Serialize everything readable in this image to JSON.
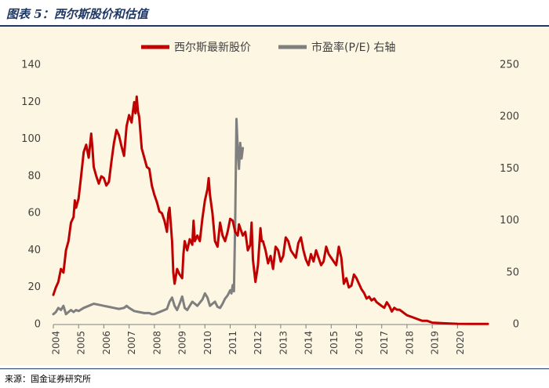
{
  "figure": {
    "title": "图表 5：西尔斯股价和估值",
    "source": "来源：国金证券研究所"
  },
  "chart_data": {
    "type": "line",
    "title": "",
    "legend_position": "top",
    "grid": false,
    "x_ticks": [
      "2004",
      "2005",
      "2006",
      "2007",
      "2008",
      "2009",
      "2010",
      "2011",
      "2012",
      "2013",
      "2014",
      "2015",
      "2016",
      "2017",
      "2018",
      "2019",
      "2020"
    ],
    "xlim": [
      2004.0,
      2021.2
    ],
    "y_left": {
      "lim": [
        0,
        140
      ],
      "ticks": [
        0,
        20,
        40,
        60,
        80,
        100,
        120,
        140
      ]
    },
    "y_right": {
      "lim": [
        0,
        250
      ],
      "ticks": [
        0,
        50,
        100,
        150,
        200,
        250
      ]
    },
    "series": [
      {
        "name": "西尔斯最新股价",
        "axis": "left",
        "color": "#c00000",
        "points": [
          [
            2004.0,
            16
          ],
          [
            2004.1,
            20
          ],
          [
            2004.2,
            23
          ],
          [
            2004.3,
            30
          ],
          [
            2004.4,
            28
          ],
          [
            2004.5,
            40
          ],
          [
            2004.6,
            45
          ],
          [
            2004.7,
            55
          ],
          [
            2004.8,
            58
          ],
          [
            2004.85,
            67
          ],
          [
            2004.9,
            63
          ],
          [
            2005.0,
            68
          ],
          [
            2005.1,
            80
          ],
          [
            2005.2,
            93
          ],
          [
            2005.3,
            97
          ],
          [
            2005.4,
            90
          ],
          [
            2005.5,
            103
          ],
          [
            2005.55,
            95
          ],
          [
            2005.6,
            85
          ],
          [
            2005.7,
            80
          ],
          [
            2005.8,
            76
          ],
          [
            2005.9,
            80
          ],
          [
            2006.0,
            79
          ],
          [
            2006.1,
            75
          ],
          [
            2006.2,
            77
          ],
          [
            2006.3,
            88
          ],
          [
            2006.4,
            98
          ],
          [
            2006.5,
            105
          ],
          [
            2006.6,
            102
          ],
          [
            2006.7,
            96
          ],
          [
            2006.8,
            91
          ],
          [
            2006.9,
            107
          ],
          [
            2007.0,
            113
          ],
          [
            2007.1,
            109
          ],
          [
            2007.15,
            115
          ],
          [
            2007.2,
            120
          ],
          [
            2007.25,
            114
          ],
          [
            2007.3,
            123
          ],
          [
            2007.35,
            115
          ],
          [
            2007.4,
            112
          ],
          [
            2007.5,
            95
          ],
          [
            2007.6,
            90
          ],
          [
            2007.7,
            85
          ],
          [
            2007.8,
            84
          ],
          [
            2007.9,
            75
          ],
          [
            2008.0,
            70
          ],
          [
            2008.1,
            66
          ],
          [
            2008.2,
            61
          ],
          [
            2008.3,
            60
          ],
          [
            2008.4,
            56
          ],
          [
            2008.5,
            50
          ],
          [
            2008.55,
            60
          ],
          [
            2008.6,
            63
          ],
          [
            2008.7,
            45
          ],
          [
            2008.75,
            28
          ],
          [
            2008.8,
            22
          ],
          [
            2008.9,
            30
          ],
          [
            2009.0,
            27
          ],
          [
            2009.1,
            25
          ],
          [
            2009.15,
            38
          ],
          [
            2009.2,
            45
          ],
          [
            2009.3,
            40
          ],
          [
            2009.4,
            46
          ],
          [
            2009.5,
            43
          ],
          [
            2009.55,
            56
          ],
          [
            2009.6,
            45
          ],
          [
            2009.7,
            48
          ],
          [
            2009.8,
            45
          ],
          [
            2009.9,
            57
          ],
          [
            2010.0,
            67
          ],
          [
            2010.1,
            73
          ],
          [
            2010.15,
            79
          ],
          [
            2010.2,
            70
          ],
          [
            2010.3,
            60
          ],
          [
            2010.4,
            45
          ],
          [
            2010.5,
            42
          ],
          [
            2010.6,
            55
          ],
          [
            2010.7,
            48
          ],
          [
            2010.8,
            45
          ],
          [
            2010.9,
            50
          ],
          [
            2011.0,
            57
          ],
          [
            2011.1,
            56
          ],
          [
            2011.2,
            50
          ],
          [
            2011.3,
            48
          ],
          [
            2011.35,
            54
          ],
          [
            2011.4,
            52
          ],
          [
            2011.5,
            48
          ],
          [
            2011.6,
            50
          ],
          [
            2011.7,
            40
          ],
          [
            2011.8,
            43
          ],
          [
            2011.85,
            55
          ],
          [
            2011.9,
            35
          ],
          [
            2012.0,
            23
          ],
          [
            2012.1,
            32
          ],
          [
            2012.2,
            52
          ],
          [
            2012.25,
            45
          ],
          [
            2012.3,
            45
          ],
          [
            2012.4,
            40
          ],
          [
            2012.5,
            33
          ],
          [
            2012.6,
            37
          ],
          [
            2012.7,
            30
          ],
          [
            2012.8,
            42
          ],
          [
            2012.9,
            40
          ],
          [
            2013.0,
            34
          ],
          [
            2013.1,
            37
          ],
          [
            2013.2,
            47
          ],
          [
            2013.3,
            45
          ],
          [
            2013.4,
            40
          ],
          [
            2013.5,
            38
          ],
          [
            2013.6,
            36
          ],
          [
            2013.7,
            44
          ],
          [
            2013.8,
            47
          ],
          [
            2013.9,
            40
          ],
          [
            2014.0,
            35
          ],
          [
            2014.1,
            32
          ],
          [
            2014.2,
            38
          ],
          [
            2014.3,
            34
          ],
          [
            2014.4,
            40
          ],
          [
            2014.5,
            36
          ],
          [
            2014.6,
            32
          ],
          [
            2014.7,
            34
          ],
          [
            2014.8,
            42
          ],
          [
            2014.9,
            38
          ],
          [
            2015.0,
            36
          ],
          [
            2015.1,
            34
          ],
          [
            2015.2,
            32
          ],
          [
            2015.3,
            42
          ],
          [
            2015.4,
            36
          ],
          [
            2015.5,
            22
          ],
          [
            2015.6,
            25
          ],
          [
            2015.7,
            20
          ],
          [
            2015.8,
            21
          ],
          [
            2015.9,
            27
          ],
          [
            2016.0,
            25
          ],
          [
            2016.1,
            22
          ],
          [
            2016.2,
            19
          ],
          [
            2016.3,
            17
          ],
          [
            2016.4,
            14
          ],
          [
            2016.5,
            15
          ],
          [
            2016.6,
            13
          ],
          [
            2016.7,
            14
          ],
          [
            2016.8,
            12
          ],
          [
            2016.9,
            11
          ],
          [
            2017.0,
            10
          ],
          [
            2017.1,
            9
          ],
          [
            2017.2,
            12
          ],
          [
            2017.3,
            10
          ],
          [
            2017.4,
            7
          ],
          [
            2017.5,
            9
          ],
          [
            2017.6,
            8
          ],
          [
            2017.7,
            8
          ],
          [
            2017.8,
            7
          ],
          [
            2017.9,
            6
          ],
          [
            2018.0,
            5
          ],
          [
            2018.2,
            4
          ],
          [
            2018.4,
            3
          ],
          [
            2018.6,
            2
          ],
          [
            2018.8,
            2
          ],
          [
            2019.0,
            1
          ],
          [
            2019.3,
            0.8
          ],
          [
            2019.6,
            0.6
          ],
          [
            2020.0,
            0.4
          ],
          [
            2020.5,
            0.3
          ],
          [
            2021.0,
            0.3
          ],
          [
            2021.2,
            0.3
          ]
        ]
      },
      {
        "name": "市盈率(P/E) 右轴",
        "axis": "right",
        "color": "#7f7f7f",
        "points": [
          [
            2004.0,
            10
          ],
          [
            2004.1,
            12
          ],
          [
            2004.2,
            16
          ],
          [
            2004.3,
            14
          ],
          [
            2004.4,
            18
          ],
          [
            2004.5,
            10
          ],
          [
            2004.6,
            12
          ],
          [
            2004.7,
            14
          ],
          [
            2004.8,
            12
          ],
          [
            2004.9,
            14
          ],
          [
            2005.0,
            13
          ],
          [
            2005.2,
            16
          ],
          [
            2005.4,
            18
          ],
          [
            2005.6,
            20
          ],
          [
            2005.8,
            19
          ],
          [
            2006.0,
            18
          ],
          [
            2006.2,
            17
          ],
          [
            2006.4,
            16
          ],
          [
            2006.6,
            15
          ],
          [
            2006.8,
            16
          ],
          [
            2006.9,
            18
          ],
          [
            2007.0,
            16
          ],
          [
            2007.2,
            13
          ],
          [
            2007.4,
            12
          ],
          [
            2007.6,
            11
          ],
          [
            2007.8,
            11
          ],
          [
            2007.9,
            10
          ],
          [
            2008.0,
            10
          ],
          [
            2008.1,
            11
          ],
          [
            2008.3,
            13
          ],
          [
            2008.5,
            15
          ],
          [
            2008.6,
            22
          ],
          [
            2008.7,
            26
          ],
          [
            2008.8,
            18
          ],
          [
            2008.9,
            14
          ],
          [
            2009.0,
            20
          ],
          [
            2009.1,
            27
          ],
          [
            2009.2,
            16
          ],
          [
            2009.3,
            14
          ],
          [
            2009.4,
            18
          ],
          [
            2009.5,
            22
          ],
          [
            2009.6,
            20
          ],
          [
            2009.7,
            18
          ],
          [
            2009.8,
            21
          ],
          [
            2009.9,
            24
          ],
          [
            2010.0,
            30
          ],
          [
            2010.1,
            26
          ],
          [
            2010.2,
            18
          ],
          [
            2010.3,
            20
          ],
          [
            2010.4,
            22
          ],
          [
            2010.5,
            17
          ],
          [
            2010.6,
            16
          ],
          [
            2010.7,
            20
          ],
          [
            2010.8,
            25
          ],
          [
            2010.9,
            28
          ],
          [
            2011.0,
            33
          ],
          [
            2011.05,
            30
          ],
          [
            2011.1,
            38
          ],
          [
            2011.15,
            32
          ],
          [
            2011.2,
            100
          ],
          [
            2011.25,
            198
          ],
          [
            2011.3,
            170
          ],
          [
            2011.35,
            150
          ],
          [
            2011.4,
            175
          ],
          [
            2011.45,
            160
          ],
          [
            2011.5,
            170
          ]
        ]
      }
    ]
  }
}
